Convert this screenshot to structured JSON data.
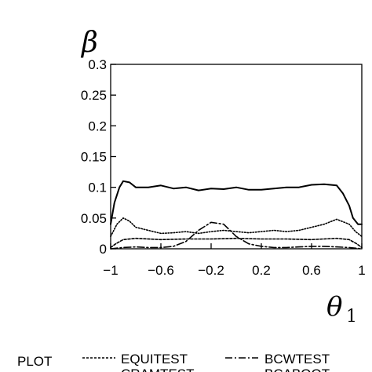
{
  "chart_data": {
    "type": "line",
    "ylabel": "β",
    "xlabel": "θ",
    "xlabel_subscript": "1",
    "xlim": [
      -1,
      1
    ],
    "ylim": [
      0,
      0.3
    ],
    "x_ticks": [
      -1,
      -0.6,
      -0.2,
      0.2,
      0.6,
      1
    ],
    "x_tick_labels": [
      "−1",
      "−0.6",
      "−0.2",
      "0.2",
      "0.6",
      "1"
    ],
    "y_ticks": [
      0,
      0.05,
      0.1,
      0.15,
      0.2,
      0.25,
      0.3
    ],
    "y_tick_labels": [
      "0",
      "0.05",
      "0.1",
      "0.15",
      "0.2",
      "0.25",
      "0.3"
    ],
    "grid": false,
    "legend_title": "PLOT",
    "legend_position": "bottom",
    "series": [
      {
        "name": "EQUITEST",
        "style": "dotted",
        "x": [
          -1,
          -0.96,
          -0.9,
          -0.8,
          -0.6,
          -0.4,
          -0.2,
          0,
          0.2,
          0.4,
          0.6,
          0.8,
          0.9,
          0.96,
          1
        ],
        "y": [
          0.002,
          0.008,
          0.015,
          0.017,
          0.015,
          0.016,
          0.016,
          0.017,
          0.016,
          0.016,
          0.015,
          0.017,
          0.015,
          0.008,
          0.002
        ]
      },
      {
        "name": "CRAMTEST",
        "style": "solid",
        "x": [
          -1,
          -0.97,
          -0.93,
          -0.9,
          -0.85,
          -0.8,
          -0.7,
          -0.6,
          -0.5,
          -0.4,
          -0.3,
          -0.2,
          -0.1,
          0,
          0.1,
          0.2,
          0.3,
          0.4,
          0.5,
          0.6,
          0.7,
          0.8,
          0.85,
          0.9,
          0.93,
          0.97,
          1
        ],
        "y": [
          0.04,
          0.075,
          0.1,
          0.11,
          0.108,
          0.1,
          0.1,
          0.103,
          0.098,
          0.1,
          0.095,
          0.098,
          0.097,
          0.1,
          0.096,
          0.096,
          0.098,
          0.1,
          0.1,
          0.104,
          0.105,
          0.103,
          0.09,
          0.07,
          0.05,
          0.04,
          0.04
        ]
      },
      {
        "name": "BCWTEST",
        "style": "dashdot",
        "x": [
          -1,
          -0.9,
          -0.8,
          -0.7,
          -0.6,
          -0.5,
          -0.4,
          -0.3,
          -0.2,
          -0.1,
          0,
          0.1,
          0.2,
          0.3,
          0.4,
          0.5,
          0.6,
          0.7,
          0.8,
          0.9,
          1
        ],
        "y": [
          0,
          0.002,
          0.003,
          0.002,
          0.002,
          0.004,
          0.012,
          0.03,
          0.043,
          0.04,
          0.02,
          0.008,
          0.004,
          0.002,
          0.002,
          0.003,
          0.004,
          0.004,
          0.003,
          0.002,
          0
        ]
      },
      {
        "name": "BCABOOT",
        "style": "densely-dotted",
        "x": [
          -1,
          -0.95,
          -0.9,
          -0.85,
          -0.8,
          -0.7,
          -0.6,
          -0.5,
          -0.4,
          -0.3,
          -0.2,
          -0.1,
          0,
          0.1,
          0.2,
          0.3,
          0.4,
          0.5,
          0.6,
          0.7,
          0.8,
          0.9,
          0.95,
          1
        ],
        "y": [
          0.02,
          0.04,
          0.05,
          0.045,
          0.035,
          0.03,
          0.025,
          0.026,
          0.028,
          0.025,
          0.028,
          0.03,
          0.028,
          0.026,
          0.028,
          0.03,
          0.028,
          0.03,
          0.035,
          0.04,
          0.048,
          0.04,
          0.028,
          0.02
        ]
      }
    ]
  }
}
